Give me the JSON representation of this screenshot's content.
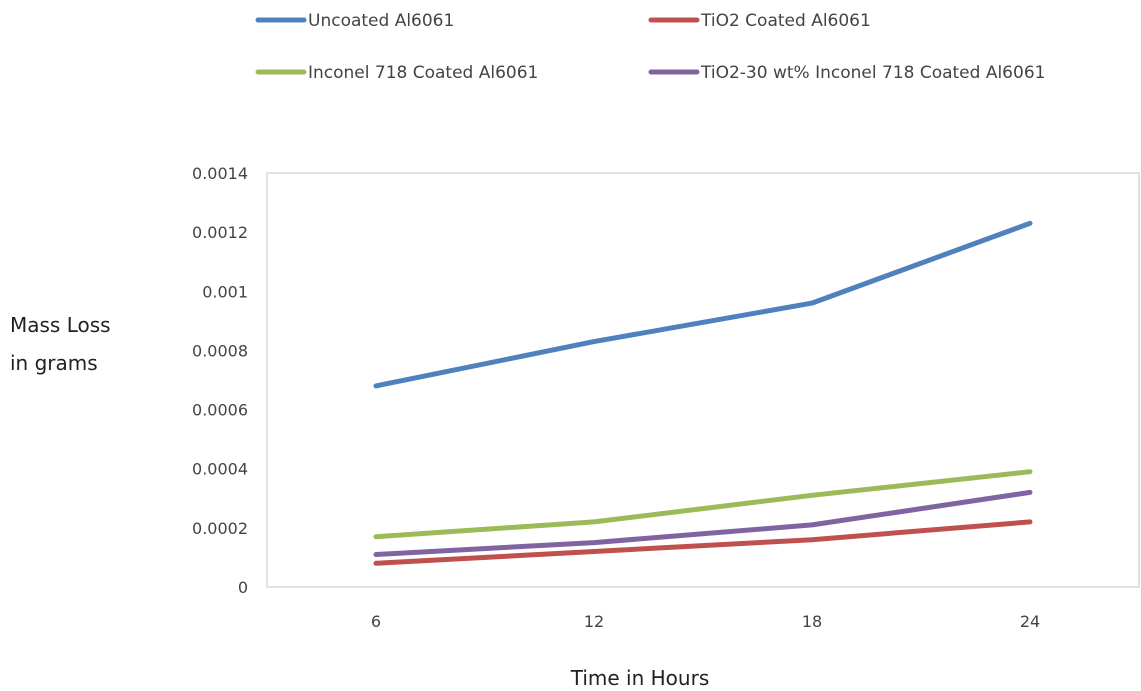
{
  "chart_data": {
    "type": "line",
    "title": "",
    "xlabel": "Time in Hours",
    "ylabel_lines": [
      "Mass Loss",
      "in grams"
    ],
    "categories": [
      "6",
      "12",
      "18",
      "24"
    ],
    "yticks": [
      "0",
      "0.0002",
      "0.0004",
      "0.0006",
      "0.0008",
      "0.001",
      "0.0012",
      "0.0014"
    ],
    "ylim": [
      0,
      0.0014
    ],
    "grid": false,
    "legend_position": "top",
    "series": [
      {
        "name": "Uncoated Al6061",
        "color": "#4F81BD",
        "values": [
          0.00068,
          0.00083,
          0.00096,
          0.00123
        ]
      },
      {
        "name": "TiO2 Coated Al6061",
        "color": "#C0504D",
        "values": [
          8e-05,
          0.00012,
          0.00016,
          0.00022
        ]
      },
      {
        "name": "Inconel 718 Coated Al6061",
        "color": "#9BBB59",
        "values": [
          0.00017,
          0.00022,
          0.00031,
          0.00039
        ]
      },
      {
        "name": "TiO2-30 wt% Inconel 718 Coated Al6061",
        "color": "#8064A2",
        "values": [
          0.00011,
          0.00015,
          0.00021,
          0.00032
        ]
      }
    ]
  }
}
